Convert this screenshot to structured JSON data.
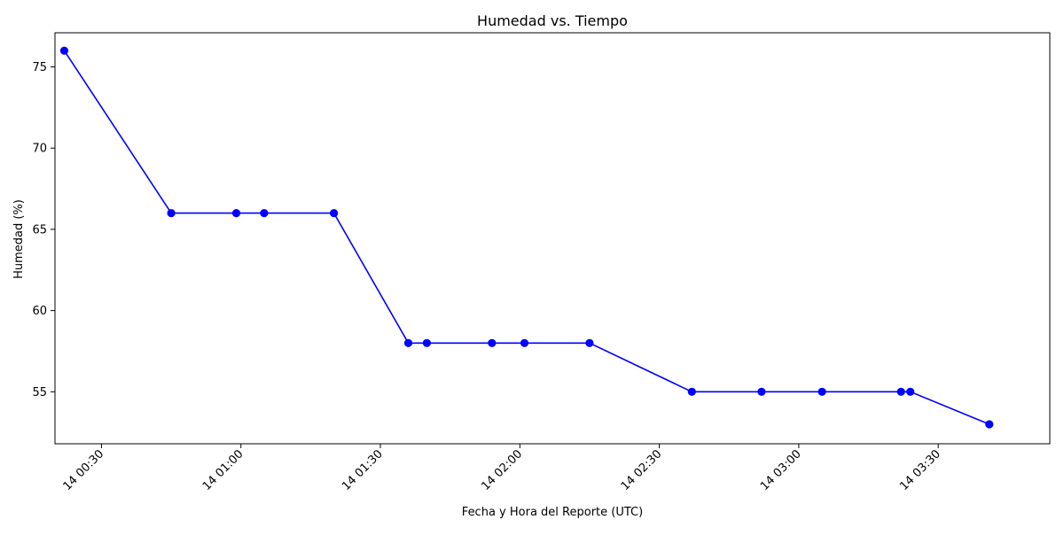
{
  "chart_data": {
    "type": "line",
    "title": "Humedad vs. Tiempo",
    "xlabel": "Fecha y Hora del Reporte (UTC)",
    "ylabel": "Humedad (%)",
    "x_tick_labels": [
      "14 00:30",
      "14 01:00",
      "14 01:30",
      "14 02:00",
      "14 02:30",
      "14 03:00",
      "14 03:30"
    ],
    "x_tick_times": [
      "00:30",
      "01:00",
      "01:30",
      "02:00",
      "02:30",
      "03:00",
      "03:30"
    ],
    "y_ticks": [
      55,
      60,
      65,
      70,
      75
    ],
    "xlim": [
      "00:20",
      "03:54"
    ],
    "ylim": [
      51.8,
      77.1
    ],
    "grid": false,
    "series": [
      {
        "color": "#0000ff",
        "marker": "circle",
        "points": [
          {
            "x": "00:22",
            "y": 76
          },
          {
            "x": "00:45",
            "y": 66
          },
          {
            "x": "00:59",
            "y": 66
          },
          {
            "x": "01:05",
            "y": 66
          },
          {
            "x": "01:20",
            "y": 66
          },
          {
            "x": "01:36",
            "y": 58
          },
          {
            "x": "01:40",
            "y": 58
          },
          {
            "x": "01:54",
            "y": 58
          },
          {
            "x": "02:01",
            "y": 58
          },
          {
            "x": "02:15",
            "y": 58
          },
          {
            "x": "02:37",
            "y": 55
          },
          {
            "x": "02:52",
            "y": 55
          },
          {
            "x": "03:05",
            "y": 55
          },
          {
            "x": "03:22",
            "y": 55
          },
          {
            "x": "03:24",
            "y": 55
          },
          {
            "x": "03:41",
            "y": 53
          }
        ]
      }
    ]
  }
}
